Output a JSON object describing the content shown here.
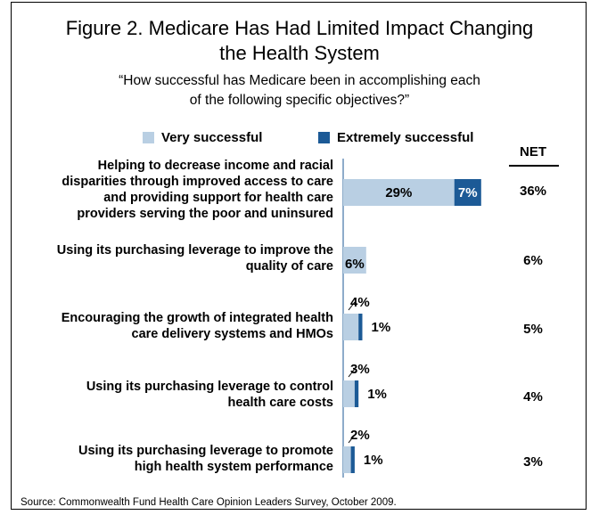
{
  "chart_data": {
    "type": "bar",
    "title_line1": "Figure 2. Medicare Has Had Limited Impact Changing",
    "title_line2": "the Health System",
    "subtitle_line1": "“How successful has Medicare been in accomplishing each",
    "subtitle_line2": "of the following specific objectives?”",
    "net_header": "NET",
    "legend": [
      {
        "name": "Very successful",
        "color": "#b9cfe3"
      },
      {
        "name": "Extremely successful",
        "color": "#1c5a96"
      }
    ],
    "categories": [
      "Helping to decrease income and racial disparities through improved access to care and providing support for health care providers serving the poor and uninsured",
      "Using its purchasing leverage to improve the quality of care",
      "Encouraging the growth of integrated health care delivery systems and HMOs",
      "Using its purchasing leverage to control health care costs",
      "Using its purchasing leverage to promote high health system performance"
    ],
    "category_lines": [
      [
        "Helping to decrease income and racial",
        "disparities through improved access to care",
        "and providing support for health care",
        "providers serving the poor and uninsured"
      ],
      [
        "Using its purchasing leverage to improve the",
        "quality of care"
      ],
      [
        "Encouraging the growth of integrated health",
        "care delivery systems and HMOs"
      ],
      [
        "Using its purchasing leverage to control",
        "health care costs"
      ],
      [
        "Using its purchasing leverage to promote",
        "high health system performance"
      ]
    ],
    "series": [
      {
        "name": "Very successful",
        "values": [
          29,
          6,
          4,
          3,
          2
        ]
      },
      {
        "name": "Extremely successful",
        "values": [
          7,
          0,
          1,
          1,
          1
        ]
      }
    ],
    "value_labels": {
      "very": [
        "29%",
        "6%",
        "4%",
        "3%",
        "2%"
      ],
      "extremely": [
        "7%",
        "",
        "1%",
        "1%",
        "1%"
      ]
    },
    "net": [
      "36%",
      "6%",
      "5%",
      "4%",
      "3%"
    ],
    "source": "Source: Commonwealth Fund Health Care Opinion Leaders Survey, October 2009."
  }
}
